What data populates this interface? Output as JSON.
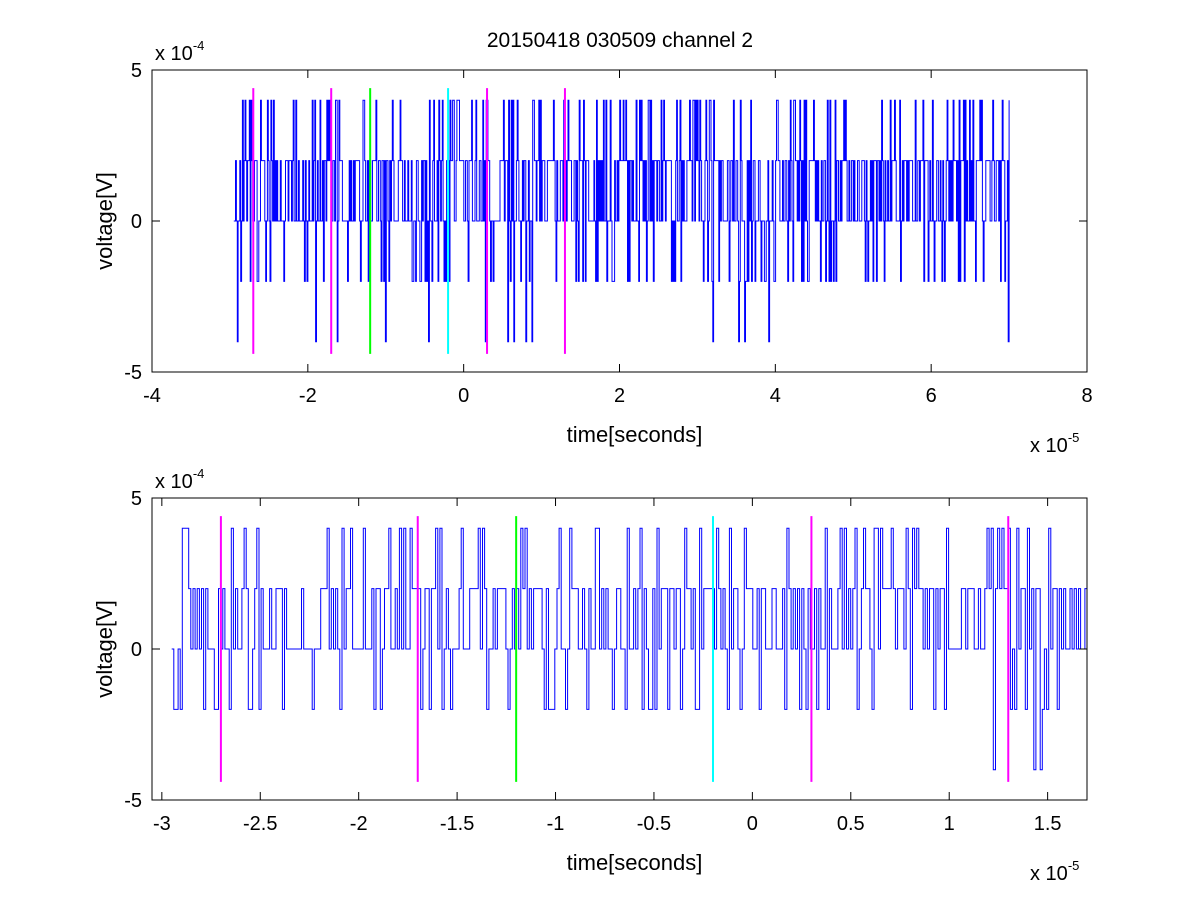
{
  "figure_title": "20150418 030509 channel 2",
  "colors": {
    "trace": "#0000ff",
    "magenta": "#ff00ff",
    "green": "#00ff00",
    "cyan": "#00ffff",
    "axis": "#000000"
  },
  "chart_data": [
    {
      "type": "line",
      "title": "20150418 030509 channel 2",
      "xlabel": "time[seconds]",
      "ylabel": "voltage[V]",
      "xlim": [
        -4,
        8
      ],
      "ylim": [
        -5,
        5
      ],
      "x_ticks": [
        "-4",
        "-2",
        "0",
        "2",
        "4",
        "6",
        "8"
      ],
      "y_ticks": [
        "-5",
        "0",
        "5"
      ],
      "x_exponent": {
        "base": "x 10",
        "power": "-5"
      },
      "y_exponent": {
        "base": "x 10",
        "power": "-4"
      },
      "grid": false,
      "trace": {
        "x_start": -2.95,
        "x_end": 7.0,
        "levels": [
          -4,
          -2,
          0,
          2,
          4
        ],
        "color": "#0000ff"
      },
      "markers": [
        {
          "x": -2.7,
          "y_from": -4.4,
          "y_to": 4.4,
          "color": "#ff00ff"
        },
        {
          "x": -1.7,
          "y_from": -4.4,
          "y_to": 4.4,
          "color": "#ff00ff"
        },
        {
          "x": -1.2,
          "y_from": -4.4,
          "y_to": 4.4,
          "color": "#00ff00"
        },
        {
          "x": -0.2,
          "y_from": -4.4,
          "y_to": 4.4,
          "color": "#00ffff"
        },
        {
          "x": 0.3,
          "y_from": -4.4,
          "y_to": 4.4,
          "color": "#ff00ff"
        },
        {
          "x": 1.3,
          "y_from": -4.4,
          "y_to": 4.4,
          "color": "#ff00ff"
        }
      ]
    },
    {
      "type": "line",
      "title": "",
      "xlabel": "time[seconds]",
      "ylabel": "voltage[V]",
      "xlim": [
        -3.05,
        1.7
      ],
      "ylim": [
        -5,
        5
      ],
      "x_ticks": [
        "-3",
        "-2.5",
        "-2",
        "-1.5",
        "-1",
        "-0.5",
        "0",
        "0.5",
        "1",
        "1.5"
      ],
      "y_ticks": [
        "-5",
        "0",
        "5"
      ],
      "x_exponent": {
        "base": "x 10",
        "power": "-5"
      },
      "y_exponent": {
        "base": "x 10",
        "power": "-4"
      },
      "grid": false,
      "trace": {
        "x_start": -2.95,
        "x_end": 1.7,
        "levels": [
          -4,
          -2,
          0,
          2,
          4
        ],
        "color": "#0000ff"
      },
      "markers": [
        {
          "x": -2.7,
          "y_from": -4.4,
          "y_to": 4.4,
          "color": "#ff00ff"
        },
        {
          "x": -1.7,
          "y_from": -4.4,
          "y_to": 4.4,
          "color": "#ff00ff"
        },
        {
          "x": -1.2,
          "y_from": -4.4,
          "y_to": 4.4,
          "color": "#00ff00"
        },
        {
          "x": -0.2,
          "y_from": -4.4,
          "y_to": 4.4,
          "color": "#00ffff"
        },
        {
          "x": 0.3,
          "y_from": -4.4,
          "y_to": 4.4,
          "color": "#ff00ff"
        },
        {
          "x": 1.3,
          "y_from": -4.4,
          "y_to": 4.4,
          "color": "#ff00ff"
        }
      ]
    }
  ]
}
